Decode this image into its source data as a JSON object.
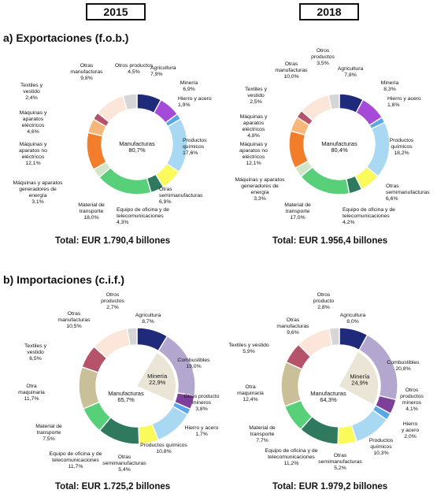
{
  "years": [
    "2015",
    "2018"
  ],
  "sections": [
    {
      "title": "a) Exportaciones (f.o.b.)"
    },
    {
      "title": "b) Importaciones (c.i.f.)"
    }
  ],
  "colors": {
    "Agricultura": "#1f2a7a",
    "Minería": "#a64ad8",
    "Hierro y acero": "#56a8e8",
    "Productos químicos": "#a9d8f2",
    "Otras semimanufacturas": "#fafa5a",
    "Equipo de oficina y de telecomunicaciones": "#2f7a5e",
    "Material de transporte": "#58d07a",
    "Máquinas y aparatos generadores de energía": "#cfe6c9",
    "Máquinas y aparatos no eléctricos": "#f27e2b",
    "Máquinas y aparatos eléctricos": "#f7b77a",
    "Textiles y vestido": "#b4536a",
    "Otras manufacturas": "#fce5d9",
    "Otros productos": "#d6d6d6",
    "Combustibles": "#b3a6cf",
    "Otros producto mineros": "#7d3f9a",
    "Otra maquinaria": "#c9c09a",
    "Otros producto": "#d6d6d6",
    "Minería_center": "#eae5d6",
    "Manufacturas_center": "#ffffff"
  },
  "chart_data": [
    {
      "type": "pie",
      "chart": "exports-2015",
      "total": "Total:  EUR 1.790,4 billones",
      "center": {
        "label": "Manufacturas",
        "value": "80,7%"
      },
      "inner_secondary": null,
      "slices": [
        {
          "category": "Agricultura",
          "label": "Agricultura",
          "value": 7.9,
          "value_label": "7,9%"
        },
        {
          "category": "Minería",
          "label": "Minería",
          "value": 6.9,
          "value_label": "6,9%"
        },
        {
          "category": "Hierro y acero",
          "label": "Hierro y acero",
          "value": 1.9,
          "value_label": "1,9%"
        },
        {
          "category": "Productos químicos",
          "label": "Productos químicos",
          "value": 17.6,
          "value_label": "17,6%"
        },
        {
          "category": "Otras semimanufacturas",
          "label": "Otras semimanufacturas",
          "value": 6.9,
          "value_label": "6,9%"
        },
        {
          "category": "Equipo de oficina y de telecomunicaciones",
          "label": "Equipo de oficina y de telecomunicaciones",
          "value": 4.3,
          "value_label": "4,3%"
        },
        {
          "category": "Material de transporte",
          "label": "Material de transporte",
          "value": 18.0,
          "value_label": "18,0%"
        },
        {
          "category": "Máquinas y aparatos generadores de energía",
          "label": "Máquinas y aparatos generadores de energía",
          "value": 3.1,
          "value_label": "3,1%"
        },
        {
          "category": "Máquinas y aparatos no eléctricos",
          "label": "Máquinas y aparatos no eléctricos",
          "value": 12.1,
          "value_label": "12,1%"
        },
        {
          "category": "Máquinas y aparatos eléctricos",
          "label": "Máquinas y aparatos eléctricos",
          "value": 4.6,
          "value_label": "4,6%"
        },
        {
          "category": "Textiles y vestido",
          "label": "Textiles y vestido",
          "value": 2.4,
          "value_label": "2,4%"
        },
        {
          "category": "Otras manufacturas",
          "label": "Otras manufacturas",
          "value": 9.8,
          "value_label": "9,8%"
        },
        {
          "category": "Otros productos",
          "label": "Otros productos",
          "value": 4.5,
          "value_label": "4,5%"
        }
      ]
    },
    {
      "type": "pie",
      "chart": "exports-2018",
      "total": "Total:  EUR 1.956,4 billones",
      "center": {
        "label": "Manufacturas",
        "value": "80,4%"
      },
      "inner_secondary": null,
      "slices": [
        {
          "category": "Agricultura",
          "label": "Agricultura",
          "value": 7.8,
          "value_label": "7,8%"
        },
        {
          "category": "Minería",
          "label": "Minería",
          "value": 8.3,
          "value_label": "8,3%"
        },
        {
          "category": "Hierro y acero",
          "label": "Hierro y acero",
          "value": 1.8,
          "value_label": "1,8%"
        },
        {
          "category": "Productos químicos",
          "label": "Productos químicos",
          "value": 18.2,
          "value_label": "18,2%"
        },
        {
          "category": "Otras semimanufacturas",
          "label": "Otras semimanufacturas",
          "value": 6.6,
          "value_label": "6,6%"
        },
        {
          "category": "Equipo de oficina y de telecomunicaciones",
          "label": "Equipo de oficina y de telecomunicaciones",
          "value": 4.2,
          "value_label": "4,2%"
        },
        {
          "category": "Material de transporte",
          "label": "Material de transporte",
          "value": 17.0,
          "value_label": "17,0%"
        },
        {
          "category": "Máquinas y aparatos generadores de energía",
          "label": "Máquinas y aparatos generadores de energía",
          "value": 3.3,
          "value_label": "3,3%"
        },
        {
          "category": "Máquinas y aparatos no eléctricos",
          "label": "Máquinas y aparatos no eléctricos",
          "value": 12.1,
          "value_label": "12,1%"
        },
        {
          "category": "Máquinas y aparatos eléctricos",
          "label": "Máquinas y aparatos eléctricos",
          "value": 4.8,
          "value_label": "4,8%"
        },
        {
          "category": "Textiles y vestido",
          "label": "Textiles y vestido",
          "value": 2.5,
          "value_label": "2,5%"
        },
        {
          "category": "Otras manufacturas",
          "label": "Otras manufacturas",
          "value": 10.0,
          "value_label": "10,0%"
        },
        {
          "category": "Otros productos",
          "label": "Otros productos",
          "value": 3.5,
          "value_label": "3,5%"
        }
      ]
    },
    {
      "type": "pie",
      "chart": "imports-2015",
      "total": "Total:  EUR 1.725,2 billones",
      "center": {
        "label": "Manufacturas",
        "value": "65,7%"
      },
      "inner_secondary": {
        "label": "Minería",
        "value": "22,9%"
      },
      "slices": [
        {
          "category": "Agricultura",
          "label": "Agricultura",
          "value": 8.7,
          "value_label": "8,7%"
        },
        {
          "category": "Combustibles",
          "label": "Combustibles",
          "value": 19.0,
          "value_label": "19,0%"
        },
        {
          "category": "Otros producto mineros",
          "label": "Otros producto mineros",
          "value": 3.8,
          "value_label": "3,8%"
        },
        {
          "category": "Hierro y acero",
          "label": "Hierro y acero",
          "value": 1.7,
          "value_label": "1,7%"
        },
        {
          "category": "Productos químicos",
          "label": "Productos químicos",
          "value": 10.8,
          "value_label": "10,8%"
        },
        {
          "category": "Otras semimanufacturas",
          "label": "Otras semimanufacturas",
          "value": 5.4,
          "value_label": "5,4%"
        },
        {
          "category": "Equipo de oficina y de telecomunicaciones",
          "label": "Equipo de oficina y de telecomunicaciones",
          "value": 11.7,
          "value_label": "11,7%"
        },
        {
          "category": "Material de transporte",
          "label": "Material de transporte",
          "value": 7.5,
          "value_label": "7,5%"
        },
        {
          "category": "Otra maquinaria",
          "label": "Otra maquinaria",
          "value": 11.7,
          "value_label": "11,7%"
        },
        {
          "category": "Textiles y vestido",
          "label": "Textiles y vestido",
          "value": 6.5,
          "value_label": "6,5%"
        },
        {
          "category": "Otras manufacturas",
          "label": "Otras manufacturas",
          "value": 10.5,
          "value_label": "10,5%"
        },
        {
          "category": "Otros productos",
          "label": "Otros productos",
          "value": 2.7,
          "value_label": "2,7%"
        }
      ]
    },
    {
      "type": "pie",
      "chart": "imports-2018",
      "total": "Total:  EUR 1.979,2 billones",
      "center": {
        "label": "Manufacturas",
        "value": "64,3%"
      },
      "inner_secondary": {
        "label": "Minería",
        "value": "24,9%"
      },
      "slices": [
        {
          "category": "Agricultura",
          "label": "Agricultura",
          "value": 8.0,
          "value_label": "8,0%"
        },
        {
          "category": "Combustibles",
          "label": "Combustibles",
          "value": 20.8,
          "value_label": "20,8%"
        },
        {
          "category": "Otros producto mineros",
          "label": "Otros productos mineros",
          "value": 4.1,
          "value_label": "4,1%"
        },
        {
          "category": "Hierro y acero",
          "label": "Hierro y acero",
          "value": 2.0,
          "value_label": "2,0%"
        },
        {
          "category": "Productos químicos",
          "label": "Productos químicos",
          "value": 10.3,
          "value_label": "10,3%"
        },
        {
          "category": "Otras semimanufacturas",
          "label": "Otras semimanufacturas",
          "value": 5.2,
          "value_label": "5,2%"
        },
        {
          "category": "Equipo de oficina y de telecomunicaciones",
          "label": "Equipo de oficina y de telecomunicaciones",
          "value": 11.2,
          "value_label": "11,2%"
        },
        {
          "category": "Material de transporte",
          "label": "Material de transporte",
          "value": 7.7,
          "value_label": "7,7%"
        },
        {
          "category": "Otra maquinaria",
          "label": "Otra maquinaria",
          "value": 12.4,
          "value_label": "12,4%"
        },
        {
          "category": "Textiles y vestido",
          "label": "Textiles y vestido",
          "value": 5.9,
          "value_label": "5,9%"
        },
        {
          "category": "Otras manufacturas",
          "label": "Otras manufacturas",
          "value": 9.6,
          "value_label": "9,6%"
        },
        {
          "category": "Otros producto",
          "label": "Otros producto",
          "value": 2.8,
          "value_label": "2,8%"
        }
      ]
    }
  ]
}
